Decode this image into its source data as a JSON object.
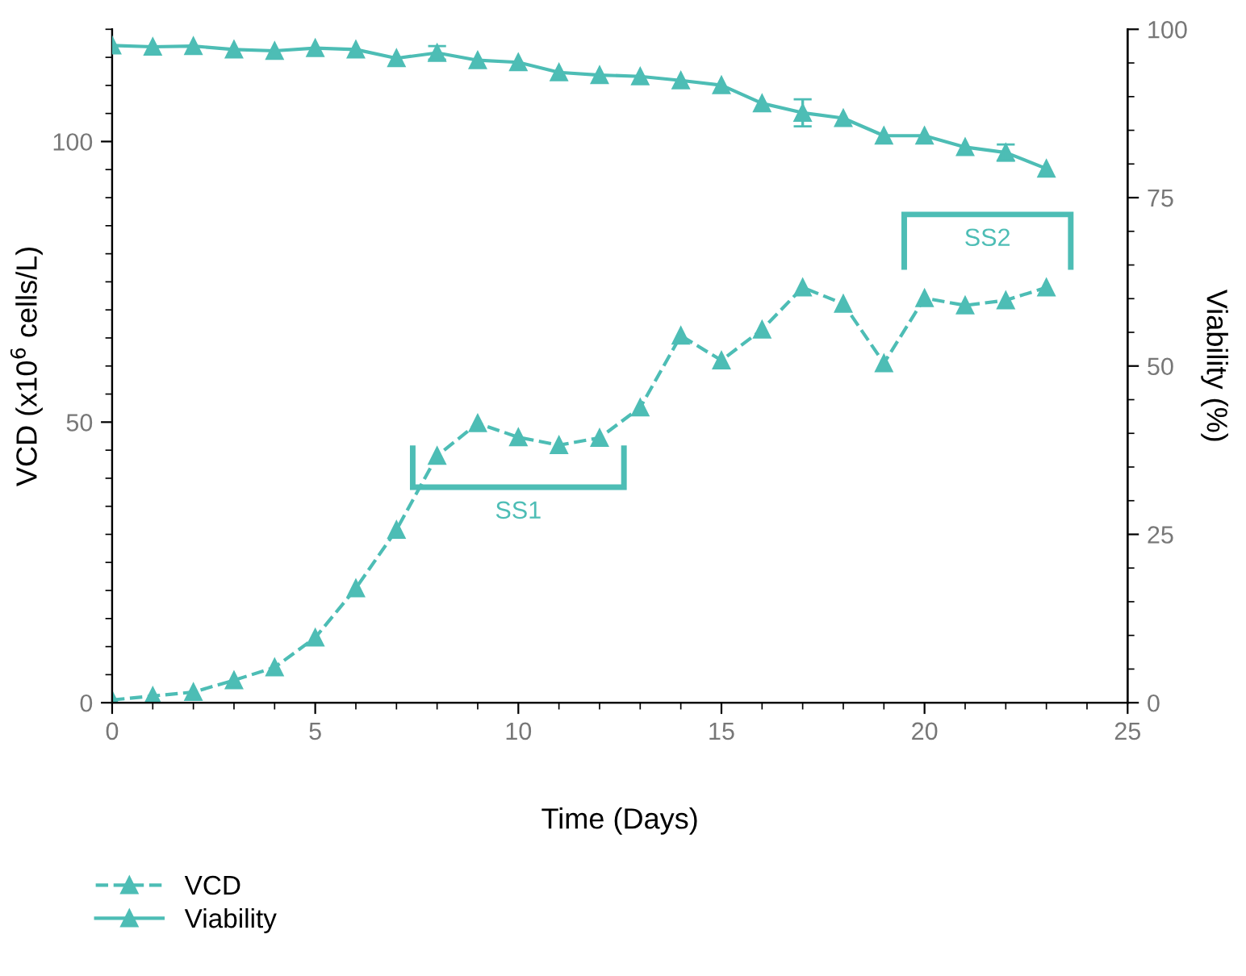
{
  "chart_data": {
    "type": "line",
    "xlabel": "Time (Days)",
    "ylabel": "VCD (x10$^{6}$ cells/L)",
    "y2label": "Viability (%)",
    "x": [
      0,
      1,
      2,
      3,
      4,
      5,
      6,
      7,
      8,
      9,
      10,
      11,
      12,
      13,
      14,
      15,
      16,
      17,
      18,
      19,
      20,
      21,
      22,
      23
    ],
    "series": [
      {
        "name": "VCD",
        "color": "#4dbdb5",
        "line_style": "dashed",
        "marker": "triangle",
        "values": [
          0.5,
          1.2,
          1.9,
          4.0,
          6.3,
          11.6,
          20.4,
          30.8,
          44.0,
          49.8,
          47.3,
          45.9,
          47.2,
          52.6,
          65.4,
          61.0,
          66.5,
          74.0,
          71.1,
          60.5,
          72.1,
          70.8,
          71.7,
          74.0
        ]
      },
      {
        "name": "Viability",
        "color": "#4dbdb5",
        "line_style": "solid",
        "marker": "triangle",
        "axis": "y2",
        "values": [
          97.6,
          97.4,
          97.5,
          97.0,
          96.8,
          97.2,
          97.0,
          95.7,
          96.5,
          95.4,
          95.1,
          93.6,
          93.2,
          93.0,
          92.4,
          91.7,
          89.0,
          87.6,
          86.8,
          84.2,
          84.2,
          82.5,
          81.7,
          79.3
        ],
        "errors": [
          null,
          null,
          null,
          null,
          null,
          null,
          null,
          null,
          1.0,
          null,
          null,
          null,
          null,
          null,
          null,
          null,
          null,
          2.0,
          null,
          null,
          null,
          null,
          1.2,
          null
        ]
      }
    ],
    "annotations": [
      "SS1",
      "SS2"
    ],
    "xlim": [
      0,
      25
    ],
    "xticks": [
      0,
      5,
      10,
      15,
      20,
      25
    ],
    "ylim": [
      0,
      120
    ],
    "yticks": [
      0,
      50,
      100
    ],
    "y2lim": [
      0,
      100
    ],
    "y2ticks": [
      0,
      25,
      50,
      75,
      100
    ],
    "grid": false,
    "legend": "bottom"
  }
}
